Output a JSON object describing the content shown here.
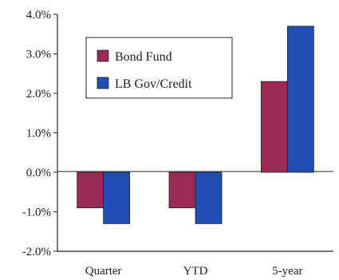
{
  "chart_data": {
    "type": "bar",
    "categories": [
      "Quarter",
      "YTD",
      "5-year"
    ],
    "series": [
      {
        "name": "Bond Fund",
        "values": [
          -0.9,
          -0.9,
          2.3
        ],
        "color": "#9b2a55"
      },
      {
        "name": "LB Gov/Credit",
        "values": [
          -1.3,
          -1.3,
          3.7
        ],
        "color": "#1f4fb3"
      }
    ],
    "ylim": [
      -2.0,
      4.0
    ],
    "yticks": [
      "4.0%",
      "3.0%",
      "2.0%",
      "1.0%",
      "0.0%",
      "-1.0%",
      "-2.0%"
    ],
    "ytick_values": [
      4,
      3,
      2,
      1,
      0,
      -1,
      -2
    ],
    "grid": false,
    "legend_placement": "top-left"
  }
}
